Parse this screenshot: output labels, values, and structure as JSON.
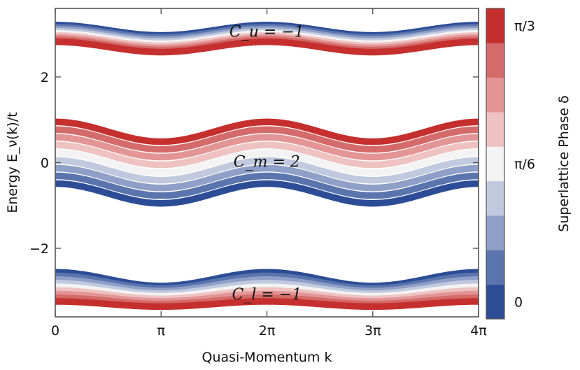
{
  "chart_data": {
    "type": "line",
    "title": "",
    "xlabel": "Quasi-Momentum k",
    "ylabel": "Energy E_ν(k)/t",
    "xlim": [
      0,
      12.566
    ],
    "ylim": [
      -3.6,
      3.6
    ],
    "x_ticks": [
      {
        "value": 0,
        "label": "0"
      },
      {
        "value": 3.1416,
        "label": "π"
      },
      {
        "value": 6.2832,
        "label": "2π"
      },
      {
        "value": 9.4248,
        "label": "3π"
      },
      {
        "value": 12.566,
        "label": "4π"
      }
    ],
    "y_ticks": [
      {
        "value": 2,
        "label": "2"
      },
      {
        "value": 0,
        "label": "0"
      },
      {
        "value": -2,
        "label": "−2"
      }
    ],
    "grid": false,
    "colorbar": {
      "label": "Superlattice Phase δ",
      "levels": 9,
      "colors": [
        "#2c4d96",
        "#5a75ae",
        "#8f9fc7",
        "#c1c9df",
        "#f3f3f3",
        "#efc2c2",
        "#e39595",
        "#d46a6a",
        "#c5302e"
      ],
      "ticks": [
        {
          "value": 0,
          "label": "0"
        },
        {
          "value": 0.5236,
          "label": "π/6"
        },
        {
          "value": 1.0472,
          "label": "π/3"
        }
      ]
    },
    "bands": [
      {
        "name": "upper",
        "label": "C_u = −1",
        "label_x": 6.28,
        "label_y": 3.07,
        "curves": [
          {
            "delta_index": 0,
            "center": 3.09,
            "amplitude": 0.12
          },
          {
            "delta_index": 8,
            "center": 2.7,
            "amplitude": 0.12
          }
        ]
      },
      {
        "name": "middle",
        "label": "C_m = 2",
        "label_x": 6.28,
        "label_y": 0.03,
        "curves": [
          {
            "delta_index": 8,
            "center": 0.72,
            "amplitude": 0.23
          },
          {
            "delta_index": 0,
            "center": -0.72,
            "amplitude": 0.23
          }
        ]
      },
      {
        "name": "lower",
        "label": "C_l = −1",
        "label_x": 6.28,
        "label_y": -3.06,
        "curves": [
          {
            "delta_index": 0,
            "center": -2.72,
            "amplitude": 0.16
          },
          {
            "delta_index": 8,
            "center": -3.3,
            "amplitude": 0.06
          }
        ]
      }
    ]
  }
}
